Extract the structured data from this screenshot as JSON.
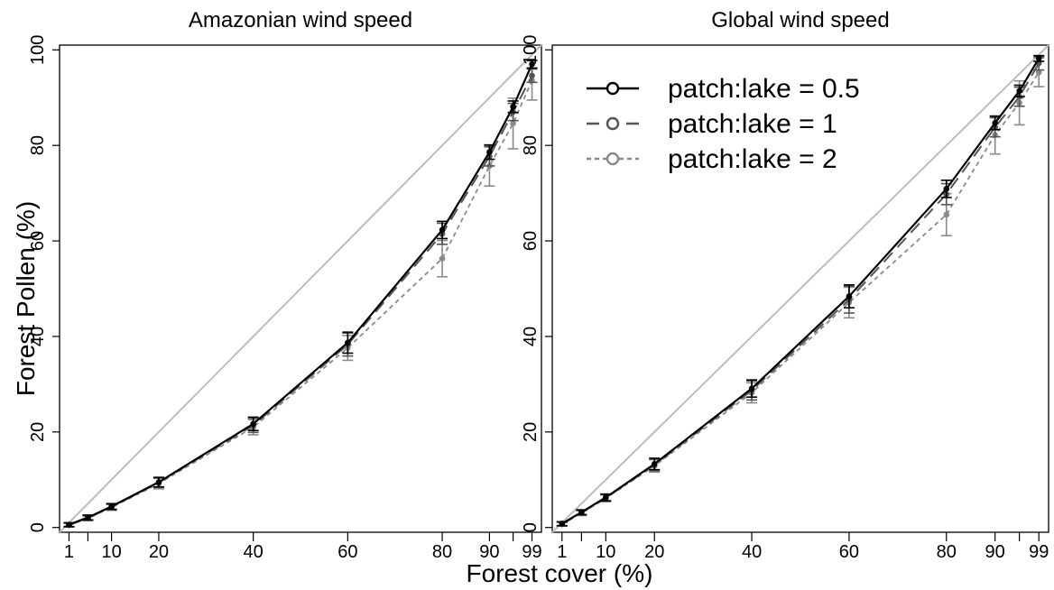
{
  "figure": {
    "xlabel": "Forest cover (%)",
    "ylabel": "Forest Pollen (%)"
  },
  "styles": {
    "series_colors": [
      "#000000",
      "#555555",
      "#8a8a8a"
    ],
    "diagonal_color": "#bdbdbd",
    "axis_color": "#000000"
  },
  "chart_data": [
    {
      "type": "line",
      "title": "Amazonian wind speed",
      "xlim": [
        -1,
        101
      ],
      "ylim": [
        -1,
        101
      ],
      "xticks": [
        1,
        10,
        20,
        40,
        60,
        80,
        90,
        99
      ],
      "xminor": [
        5,
        95
      ],
      "yticks": [
        0,
        20,
        40,
        60,
        80,
        100
      ],
      "x": [
        1,
        5,
        10,
        20,
        40,
        60,
        80,
        90,
        95,
        99
      ],
      "grid": false,
      "legend": "none",
      "series": [
        {
          "name": "patch:lake = 0.5",
          "values": [
            0.6,
            2.1,
            4.4,
            9.5,
            21.7,
            38.7,
            62.3,
            78.6,
            88.1,
            97.0
          ],
          "err": [
            0.4,
            0.5,
            0.6,
            1.0,
            1.4,
            2.2,
            1.8,
            1.5,
            1.2,
            0.8
          ]
        },
        {
          "name": "patch:lake = 1",
          "values": [
            0.5,
            2.0,
            4.3,
            9.4,
            21.4,
            38.3,
            61.5,
            77.7,
            87.0,
            94.6
          ],
          "err": [
            0.4,
            0.5,
            0.6,
            1.0,
            1.5,
            2.4,
            2.2,
            2.0,
            1.8,
            1.4
          ]
        },
        {
          "name": "patch:lake = 2",
          "values": [
            0.5,
            1.9,
            4.2,
            9.2,
            21.0,
            37.6,
            56.3,
            75.7,
            84.6,
            93.6
          ],
          "err": [
            0.4,
            0.5,
            0.6,
            1.1,
            1.6,
            2.6,
            3.8,
            4.2,
            5.3,
            4.1
          ]
        }
      ]
    },
    {
      "type": "line",
      "title": "Global wind speed",
      "xlim": [
        -1,
        101
      ],
      "ylim": [
        -1,
        101
      ],
      "xticks": [
        1,
        10,
        20,
        40,
        60,
        80,
        90,
        99
      ],
      "xminor": [
        5,
        95
      ],
      "yticks": [
        0,
        20,
        40,
        60,
        80,
        100
      ],
      "x": [
        1,
        5,
        10,
        20,
        40,
        60,
        80,
        90,
        95,
        99
      ],
      "grid": false,
      "legend": "top-left",
      "series": [
        {
          "name": "patch:lake = 0.5",
          "values": [
            0.8,
            3.2,
            6.3,
            13.3,
            29.1,
            48.4,
            70.9,
            84.7,
            91.4,
            98.2
          ],
          "err": [
            0.4,
            0.5,
            0.7,
            1.2,
            1.8,
            2.4,
            1.8,
            1.4,
            1.2,
            0.6
          ]
        },
        {
          "name": "patch:lake = 1",
          "values": [
            0.7,
            3.1,
            6.2,
            13.1,
            28.7,
            47.7,
            69.8,
            83.8,
            90.2,
            97.2
          ],
          "err": [
            0.4,
            0.5,
            0.7,
            1.2,
            2.0,
            2.8,
            2.2,
            2.0,
            2.0,
            1.4
          ]
        },
        {
          "name": "patch:lake = 2",
          "values": [
            0.7,
            3.0,
            6.1,
            12.9,
            28.2,
            47.1,
            65.5,
            82.2,
            88.9,
            95.3
          ],
          "err": [
            0.4,
            0.5,
            0.7,
            1.3,
            2.1,
            3.2,
            4.4,
            4.0,
            4.6,
            3.0
          ]
        }
      ]
    }
  ]
}
